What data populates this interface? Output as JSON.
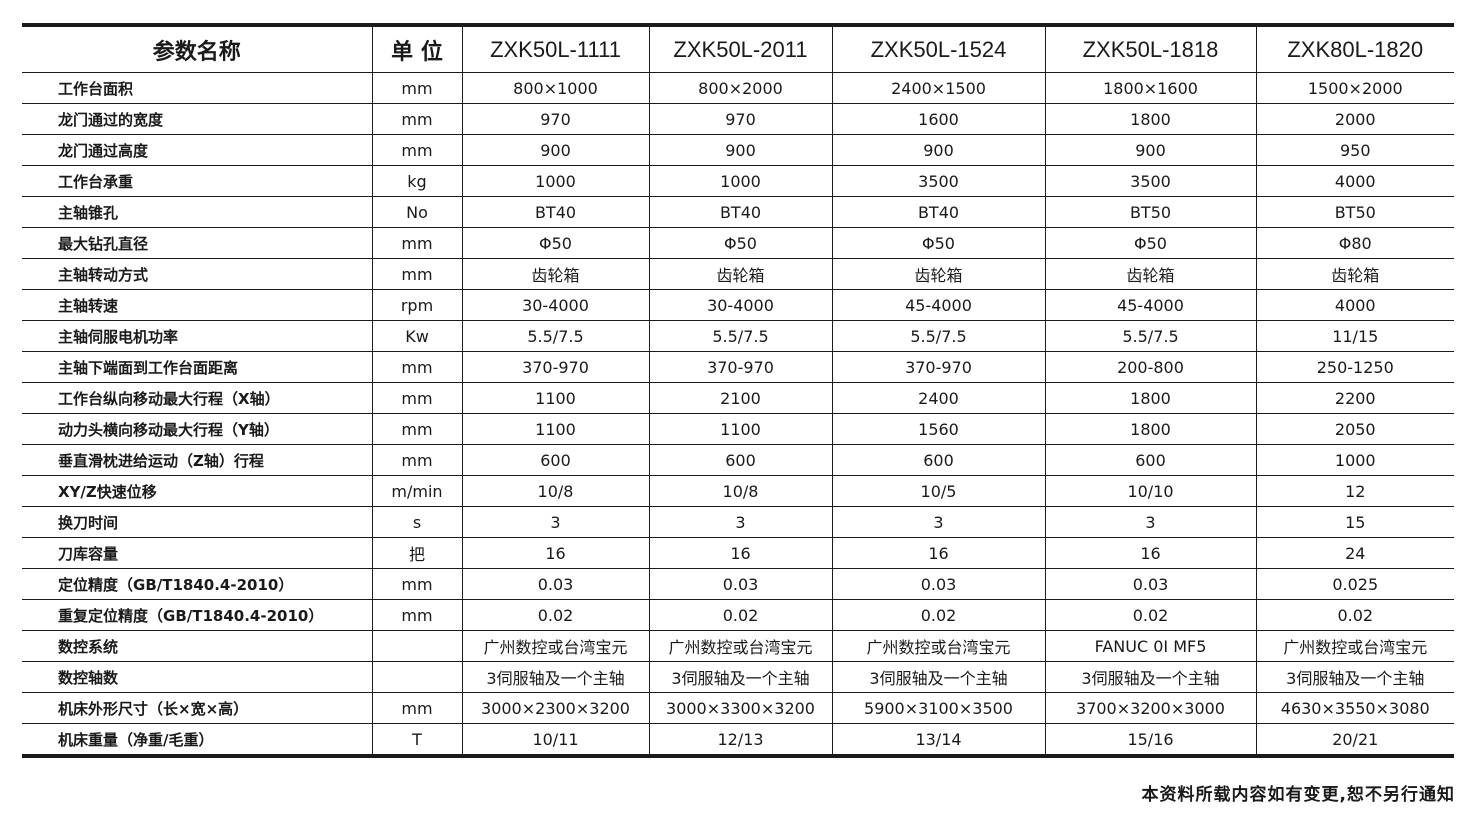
{
  "header": {
    "param_label": "参数名称",
    "unit_label": "单 位",
    "models": [
      "ZXK50L-1111",
      "ZXK50L-2011",
      "ZXK50L-1524",
      "ZXK50L-1818",
      "ZXK80L-1820"
    ]
  },
  "rows": [
    {
      "name": "工作台面积",
      "unit": "mm",
      "values": [
        "800×1000",
        "800×2000",
        "2400×1500",
        "1800×1600",
        "1500×2000"
      ]
    },
    {
      "name": "龙门通过的宽度",
      "unit": "mm",
      "values": [
        "970",
        "970",
        "1600",
        "1800",
        "2000"
      ]
    },
    {
      "name": "龙门通过高度",
      "unit": "mm",
      "values": [
        "900",
        "900",
        "900",
        "900",
        "950"
      ]
    },
    {
      "name": "工作台承重",
      "unit": "kg",
      "values": [
        "1000",
        "1000",
        "3500",
        "3500",
        "4000"
      ]
    },
    {
      "name": "主轴锥孔",
      "unit": "No",
      "values": [
        "BT40",
        "BT40",
        "BT40",
        "BT50",
        "BT50"
      ]
    },
    {
      "name": "最大钻孔直径",
      "unit": "mm",
      "values": [
        "Φ50",
        "Φ50",
        "Φ50",
        "Φ50",
        "Φ80"
      ]
    },
    {
      "name": "主轴转动方式",
      "unit": "mm",
      "values": [
        "齿轮箱",
        "齿轮箱",
        "齿轮箱",
        "齿轮箱",
        "齿轮箱"
      ]
    },
    {
      "name": "主轴转速",
      "unit": "rpm",
      "values": [
        "30-4000",
        "30-4000",
        "45-4000",
        "45-4000",
        "4000"
      ]
    },
    {
      "name": "主轴伺服电机功率",
      "unit": "Kw",
      "values": [
        "5.5/7.5",
        "5.5/7.5",
        "5.5/7.5",
        "5.5/7.5",
        "11/15"
      ]
    },
    {
      "name": "主轴下端面到工作台面距离",
      "unit": "mm",
      "values": [
        "370-970",
        "370-970",
        "370-970",
        "200-800",
        "250-1250"
      ]
    },
    {
      "name": "工作台纵向移动最大行程（X轴）",
      "unit": "mm",
      "values": [
        "1100",
        "2100",
        "2400",
        "1800",
        "2200"
      ]
    },
    {
      "name": "动力头横向移动最大行程（Y轴）",
      "unit": "mm",
      "values": [
        "1100",
        "1100",
        "1560",
        "1800",
        "2050"
      ]
    },
    {
      "name": "垂直滑枕进给运动（Z轴）行程",
      "unit": "mm",
      "values": [
        "600",
        "600",
        "600",
        "600",
        "1000"
      ]
    },
    {
      "name": "XY/Z快速位移",
      "unit": "m/min",
      "values": [
        "10/8",
        "10/8",
        "10/5",
        "10/10",
        "12"
      ]
    },
    {
      "name": "换刀时间",
      "unit": "s",
      "values": [
        "3",
        "3",
        "3",
        "3",
        "15"
      ]
    },
    {
      "name": "刀库容量",
      "unit": "把",
      "values": [
        "16",
        "16",
        "16",
        "16",
        "24"
      ]
    },
    {
      "name": "定位精度（GB/T1840.4-2010）",
      "unit": "mm",
      "values": [
        "0.03",
        "0.03",
        "0.03",
        "0.03",
        "0.025"
      ]
    },
    {
      "name": "重复定位精度（GB/T1840.4-2010）",
      "unit": "mm",
      "values": [
        "0.02",
        "0.02",
        "0.02",
        "0.02",
        "0.02"
      ]
    },
    {
      "name": "数控系统",
      "unit": "",
      "values": [
        "广州数控或台湾宝元",
        "广州数控或台湾宝元",
        "广州数控或台湾宝元",
        "FANUC 0I MF5",
        "广州数控或台湾宝元"
      ]
    },
    {
      "name": "数控轴数",
      "unit": "",
      "values": [
        "3伺服轴及一个主轴",
        "3伺服轴及一个主轴",
        "3伺服轴及一个主轴",
        "3伺服轴及一个主轴",
        "3伺服轴及一个主轴"
      ]
    },
    {
      "name": "机床外形尺寸（长×宽×高）",
      "unit": "mm",
      "values": [
        "3000×2300×3200",
        "3000×3300×3200",
        "5900×3100×3500",
        "3700×3200×3000",
        "4630×3550×3080"
      ]
    },
    {
      "name": "机床重量（净重/毛重）",
      "unit": "T",
      "values": [
        "10/11",
        "12/13",
        "13/14",
        "15/16",
        "20/21"
      ]
    }
  ],
  "footer": {
    "note": "本资料所载内容如有变更,恕不另行通知"
  }
}
